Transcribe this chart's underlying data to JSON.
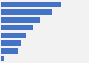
{
  "values": [
    72,
    61,
    47,
    38,
    30,
    25,
    20,
    4
  ],
  "bar_color": "#4472c4",
  "background_color": "#f2f2f2",
  "xlim": [
    0,
    82
  ],
  "figsize": [
    1.0,
    0.71
  ],
  "dpi": 100,
  "grid_color": "#ffffff",
  "bar_height": 0.75
}
